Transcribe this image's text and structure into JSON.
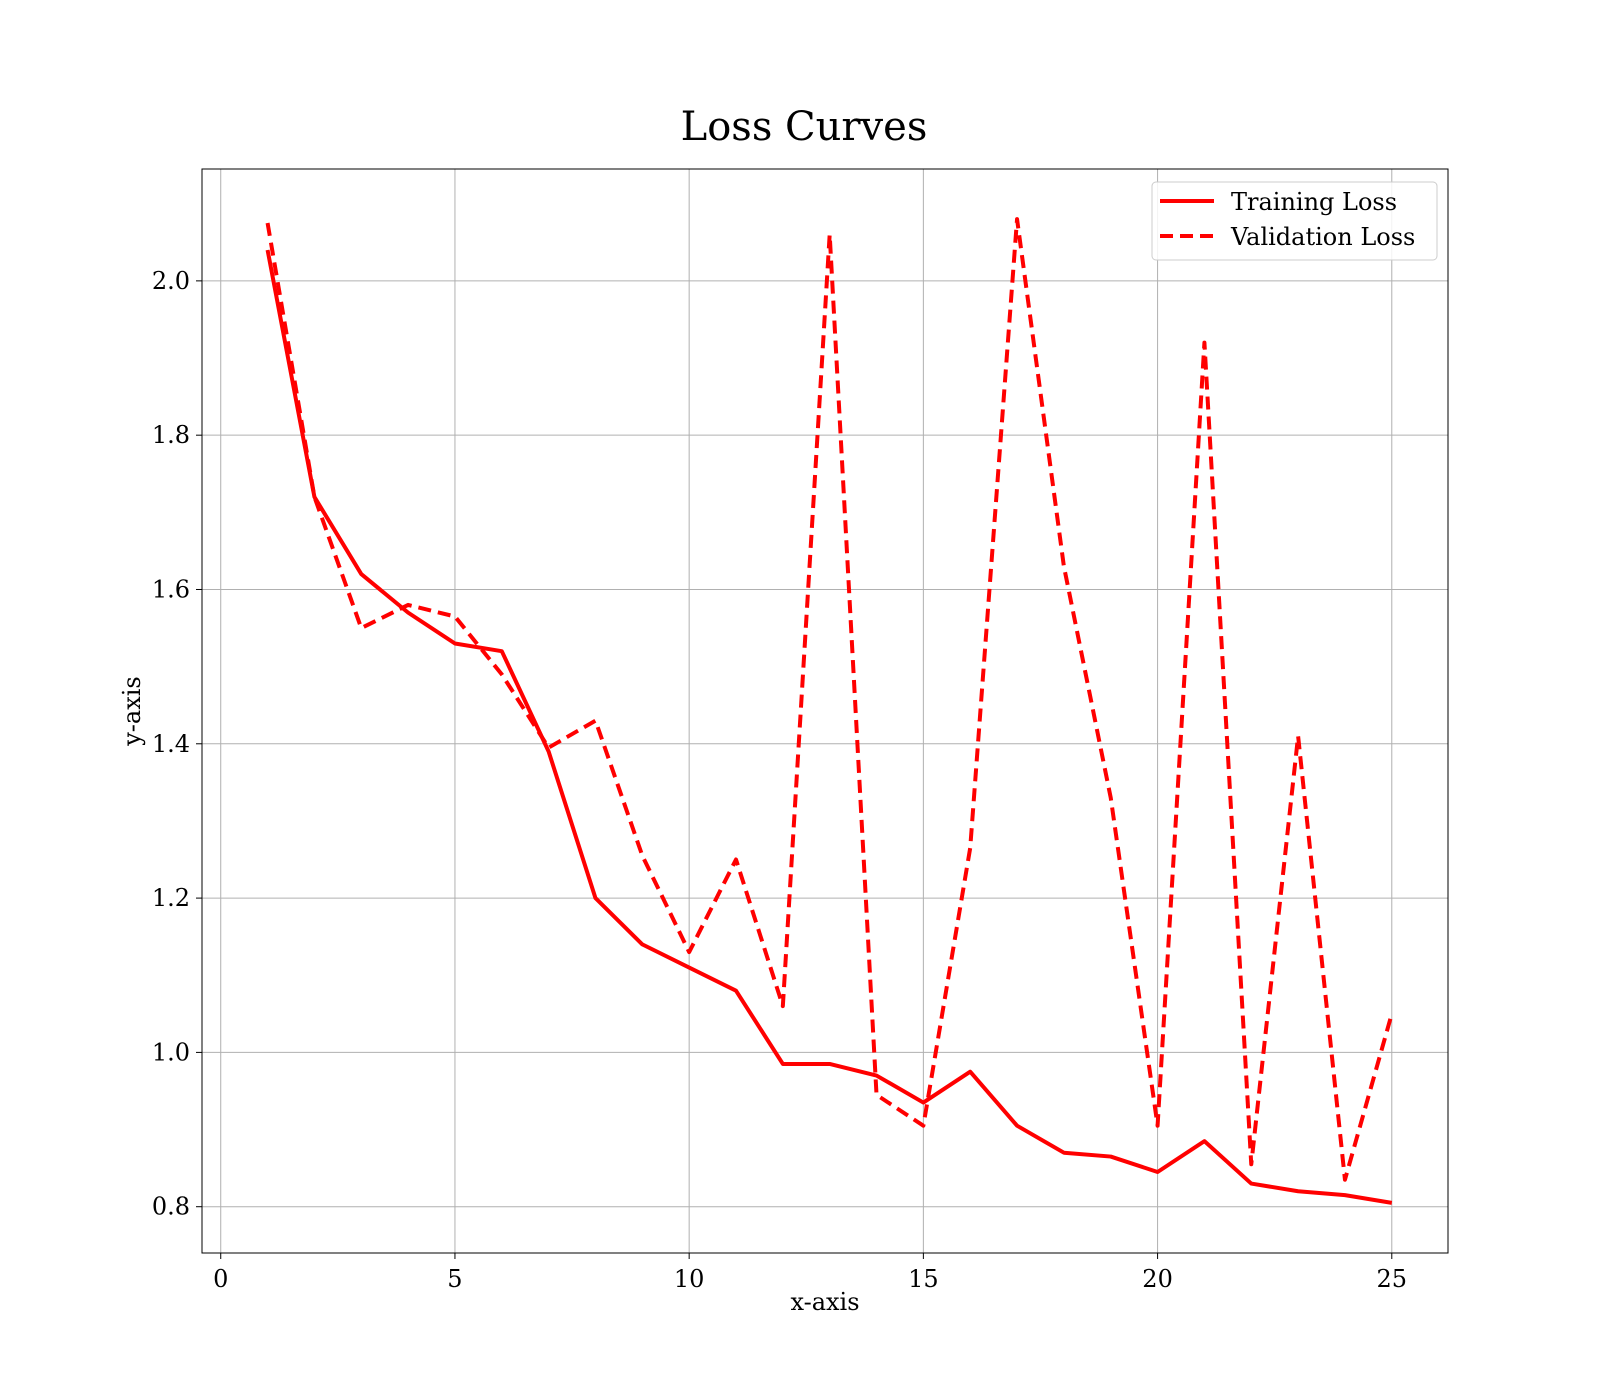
{
  "chart_data": {
    "type": "line",
    "title": "Loss Curves",
    "xlabel": "x-axis",
    "ylabel": "y-axis",
    "xlim": [
      -0.4,
      26.2
    ],
    "ylim": [
      0.74,
      2.145
    ],
    "xticks": [
      0,
      5,
      10,
      15,
      20,
      25
    ],
    "yticks": [
      0.8,
      1.0,
      1.2,
      1.4,
      1.6,
      1.8,
      2.0
    ],
    "ytick_labels": [
      "0.8",
      "1.0",
      "1.2",
      "1.4",
      "1.6",
      "1.8",
      "2.0"
    ],
    "grid": true,
    "legend_position": "top-right",
    "x": [
      1,
      2,
      3,
      4,
      5,
      6,
      7,
      8,
      9,
      10,
      11,
      12,
      13,
      14,
      15,
      16,
      17,
      18,
      19,
      20,
      21,
      22,
      23,
      24,
      25
    ],
    "series": [
      {
        "name": "Training Loss",
        "style": "solid",
        "color": "#ff0000",
        "values": [
          2.04,
          1.72,
          1.62,
          1.57,
          1.53,
          1.52,
          1.39,
          1.2,
          1.14,
          1.11,
          1.08,
          0.985,
          0.985,
          0.97,
          0.935,
          0.975,
          0.905,
          0.87,
          0.865,
          0.845,
          0.885,
          0.83,
          0.82,
          0.815,
          0.805
        ]
      },
      {
        "name": "Validation Loss",
        "style": "dashed",
        "color": "#ff0000",
        "values": [
          2.075,
          1.72,
          1.55,
          1.58,
          1.565,
          1.49,
          1.395,
          1.43,
          1.255,
          1.13,
          1.25,
          1.06,
          2.06,
          0.945,
          0.905,
          1.265,
          2.08,
          1.63,
          1.33,
          0.905,
          1.92,
          0.855,
          1.41,
          0.835,
          1.05
        ]
      }
    ]
  }
}
